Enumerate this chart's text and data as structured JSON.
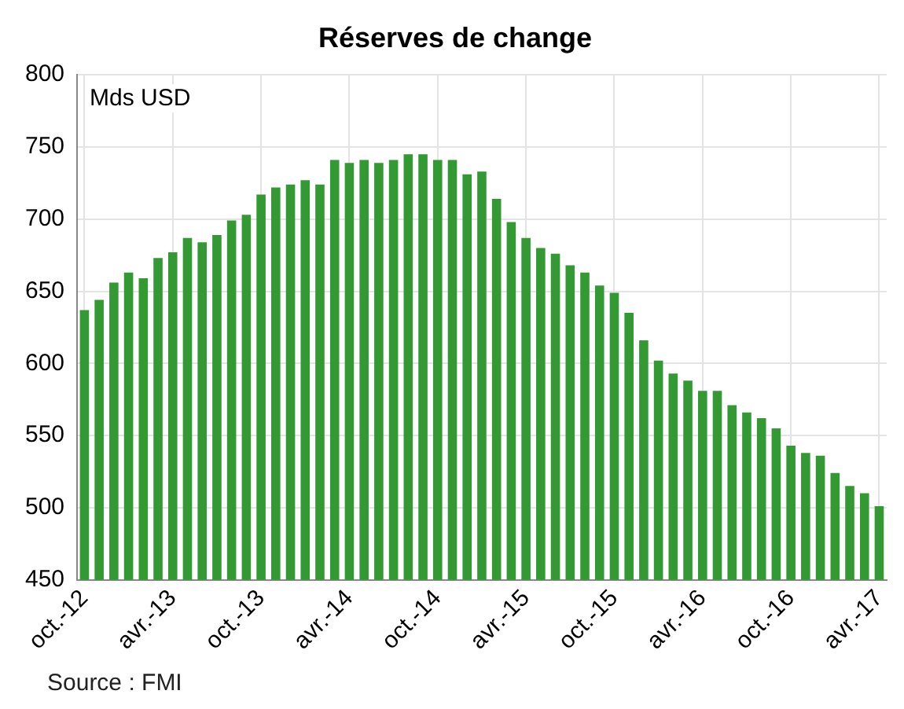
{
  "chart_data": {
    "type": "bar",
    "title": "Réserves de change",
    "categories": [
      "oct.-12",
      null,
      null,
      null,
      null,
      null,
      "avr.-13",
      null,
      null,
      null,
      null,
      null,
      "oct.-13",
      null,
      null,
      null,
      null,
      null,
      "avr.-14",
      null,
      null,
      null,
      null,
      null,
      "oct.-14",
      null,
      null,
      null,
      null,
      null,
      "avr.-15",
      null,
      null,
      null,
      null,
      null,
      "oct.-15",
      null,
      null,
      null,
      null,
      null,
      "avr.-16",
      null,
      null,
      null,
      null,
      null,
      "oct.-16",
      null,
      null,
      null,
      null,
      null,
      "avr.-17"
    ],
    "values": [
      637,
      644,
      656,
      663,
      659,
      673,
      677,
      687,
      684,
      689,
      699,
      703,
      717,
      722,
      724,
      727,
      724,
      741,
      739,
      741,
      739,
      741,
      745,
      745,
      741,
      741,
      731,
      733,
      714,
      698,
      687,
      680,
      676,
      668,
      663,
      654,
      649,
      635,
      616,
      602,
      593,
      588,
      581,
      581,
      571,
      566,
      562,
      555,
      543,
      538,
      536,
      524,
      515,
      510,
      501
    ],
    "color": "#339933",
    "ylim": [
      450,
      800
    ],
    "yticks": [
      450,
      500,
      550,
      600,
      650,
      700,
      750,
      800
    ],
    "grid": true,
    "legend": false,
    "annotations": [
      "Mds USD",
      "Source : FMI"
    ]
  }
}
